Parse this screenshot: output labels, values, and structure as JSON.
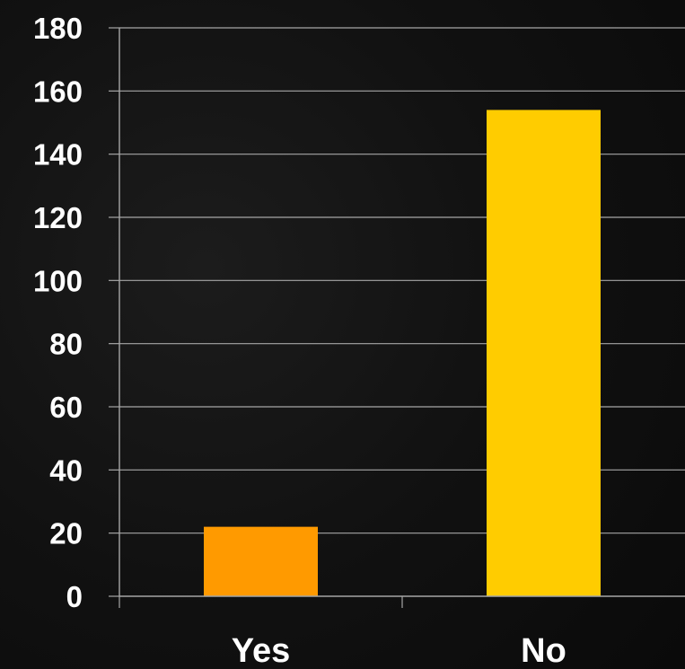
{
  "chart_data": {
    "type": "bar",
    "categories": [
      "Yes",
      "No"
    ],
    "values": [
      22,
      154
    ],
    "colors": [
      "#ff9a00",
      "#ffcc00"
    ],
    "ylim": [
      0,
      180
    ],
    "yticks": [
      "0",
      "20",
      "40",
      "60",
      "80",
      "100",
      "120",
      "140",
      "160",
      "180"
    ],
    "grid": true,
    "title": "",
    "xlabel": "",
    "ylabel": ""
  },
  "style": {
    "background": "#111111",
    "gridline_color": "#a6a6a6",
    "axis_color": "#a6a6a6",
    "text_color": "#ffffff"
  }
}
